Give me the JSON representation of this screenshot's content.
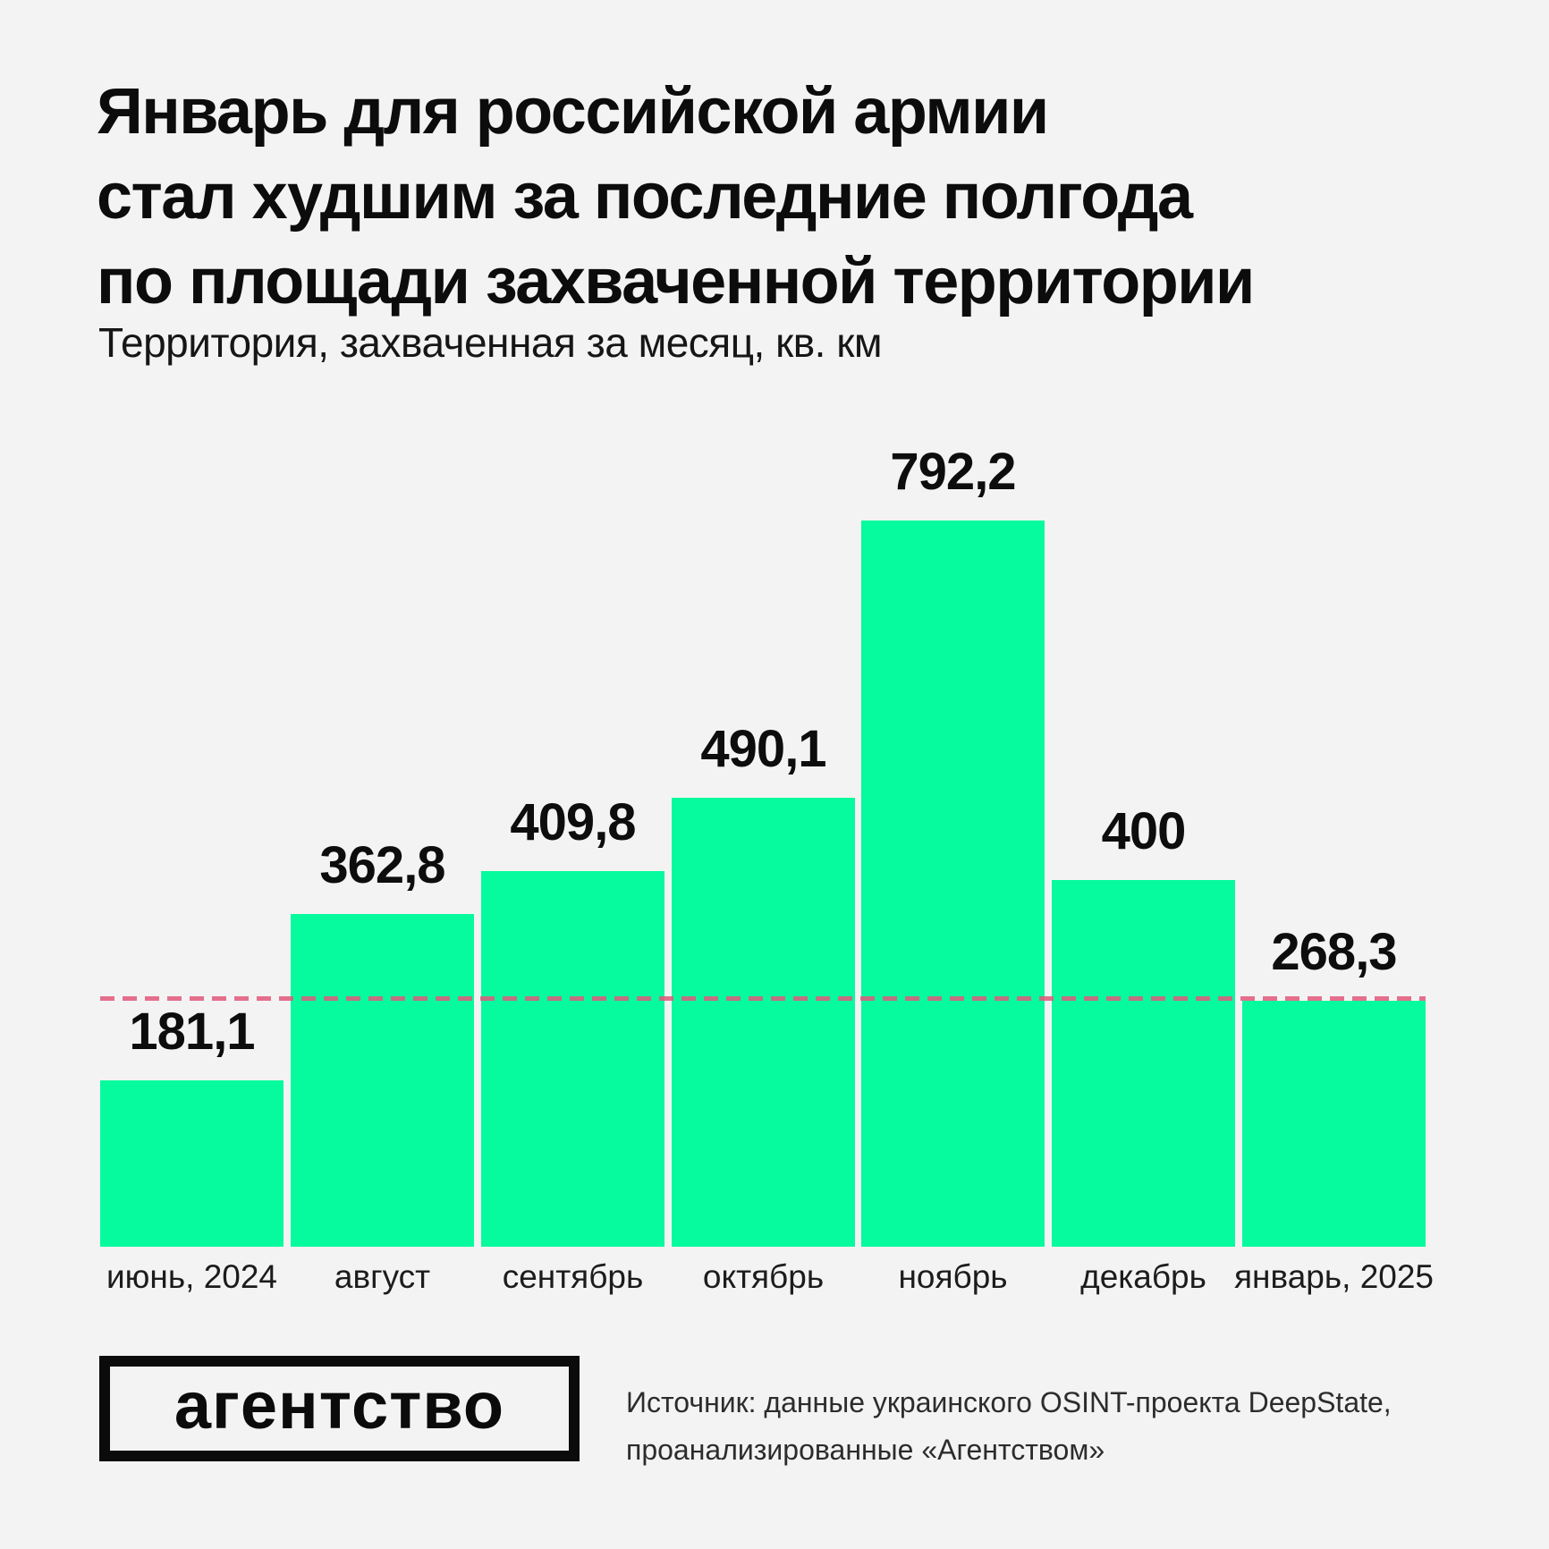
{
  "page": {
    "title": "Январь для российской армии\nстал худшим за последние полгода\nпо площади захваченной территории",
    "subtitle": "Территория, захваченная за месяц, кв. км"
  },
  "chart_data": {
    "type": "bar",
    "title": "Январь для российской армии стал худшим за последние полгода по площади захваченной территории",
    "subtitle": "Территория, захваченная за месяц, кв. км",
    "unit": "кв. км",
    "categories": [
      "июнь, 2024",
      "август",
      "сентябрь",
      "октябрь",
      "ноябрь",
      "декабрь",
      "январь, 2025"
    ],
    "values": [
      181.1,
      362.8,
      409.8,
      490.1,
      792.2,
      400,
      268.3
    ],
    "value_labels": [
      "181,1",
      "362,8",
      "409,8",
      "490,1",
      "792,2",
      "400",
      "268,3"
    ],
    "ylim": [
      0,
      830
    ],
    "grid": false,
    "legend": "none",
    "bar_color": "#05fb9e",
    "reference_line": {
      "value": 268.3,
      "style": "dashed",
      "color": "#ee7292"
    }
  },
  "footer": {
    "logo_text": "агентство",
    "source_text": "Источник: данные украинского OSINT-проекта DeepState,\nпроанализированные «Агентством»"
  },
  "colors": {
    "background": "#f3f3f3",
    "bar": "#05fb9e",
    "text": "#0c0c0d",
    "reference": "#ee7292"
  }
}
